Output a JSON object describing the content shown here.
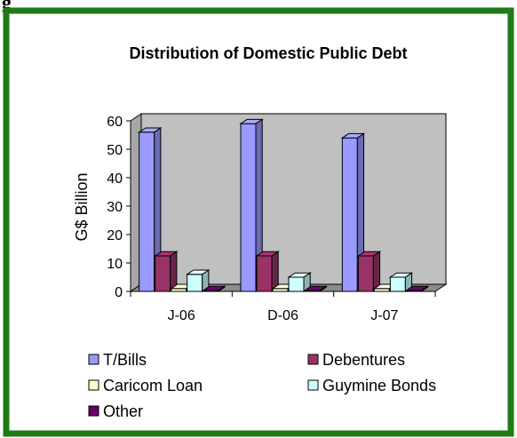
{
  "figure_label_fragment": "g",
  "colors": {
    "border": "#1E7B16",
    "plot_bg": "#C0C0C0"
  },
  "chart_data": {
    "type": "bar",
    "title": "Distribution of Domestic Public Debt",
    "xlabel": "",
    "ylabel": "G$ Billion",
    "ylim": [
      0,
      60
    ],
    "yticks": [
      0,
      10,
      20,
      30,
      40,
      50,
      60
    ],
    "grid": false,
    "legend_position": "bottom",
    "categories": [
      "J-06",
      "D-06",
      "J-07"
    ],
    "series": [
      {
        "name": "T/Bills",
        "color": "#9999FF",
        "values": [
          56,
          59,
          54
        ]
      },
      {
        "name": "Debentures",
        "color": "#993366",
        "values": [
          12.5,
          12.5,
          12.5
        ]
      },
      {
        "name": "Caricom Loan",
        "color": "#FFFFCC",
        "values": [
          1,
          1,
          1
        ]
      },
      {
        "name": "Guymine Bonds",
        "color": "#CCFFFF",
        "values": [
          6,
          5,
          5
        ]
      },
      {
        "name": "Other",
        "color": "#660066",
        "values": [
          0.3,
          0.3,
          0.3
        ]
      }
    ]
  }
}
